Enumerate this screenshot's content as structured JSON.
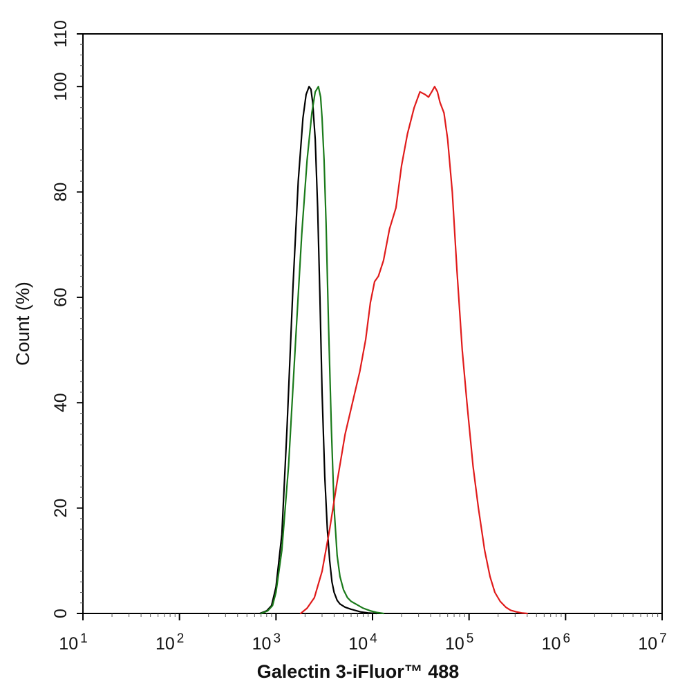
{
  "chart_data": {
    "type": "line",
    "title": "",
    "xlabel": "Galectin 3-iFluor™ 488",
    "ylabel": "Count  (%)",
    "x_scale": "log",
    "xlim": [
      10,
      10000000
    ],
    "ylim": [
      0,
      110
    ],
    "grid": false,
    "legend": "none",
    "x_ticks": [
      {
        "value": 10,
        "base": "10",
        "exp": "1"
      },
      {
        "value": 100,
        "base": "10",
        "exp": "2"
      },
      {
        "value": 1000,
        "base": "10",
        "exp": "3"
      },
      {
        "value": 10000,
        "base": "10",
        "exp": "4"
      },
      {
        "value": 100000,
        "base": "10",
        "exp": "5"
      },
      {
        "value": 1000000,
        "base": "10",
        "exp": "6"
      },
      {
        "value": 10000000,
        "base": "10",
        "exp": "7"
      }
    ],
    "y_ticks": [
      "0",
      "20",
      "40",
      "60",
      "80",
      "100",
      "110"
    ],
    "series": [
      {
        "color": "#000000",
        "x": [
          680,
          800,
          900,
          1000,
          1150,
          1300,
          1500,
          1700,
          1900,
          2050,
          2200,
          2300,
          2400,
          2550,
          2700,
          2850,
          3000,
          3200,
          3400,
          3600,
          3800,
          4000,
          4300,
          4600,
          5200,
          6000,
          7500,
          9000,
          11000
        ],
        "y": [
          0,
          0.5,
          1.5,
          5,
          15,
          35,
          62,
          82,
          94,
          98.5,
          100,
          99.5,
          97,
          90,
          77,
          60,
          42,
          26,
          16,
          10,
          6,
          4,
          2.5,
          1.8,
          1.2,
          0.8,
          0.3,
          0.1,
          0
        ]
      },
      {
        "color": "#1a7a1a",
        "x": [
          700,
          820,
          920,
          1000,
          1150,
          1350,
          1600,
          1850,
          2100,
          2350,
          2550,
          2750,
          2900,
          3000,
          3150,
          3300,
          3500,
          3750,
          4000,
          4300,
          4600,
          5000,
          5500,
          6000,
          7000,
          8000,
          9500,
          11000,
          13000
        ],
        "y": [
          0,
          0.5,
          1.5,
          4,
          12,
          28,
          52,
          72,
          86,
          95,
          99,
          100,
          98,
          94,
          86,
          74,
          55,
          35,
          20,
          11,
          7,
          4.5,
          3,
          2.3,
          1.6,
          1,
          0.5,
          0.2,
          0
        ]
      },
      {
        "color": "#e01b1b",
        "x": [
          1800,
          2100,
          2500,
          3000,
          3600,
          4300,
          5200,
          6200,
          7400,
          8500,
          9500,
          10500,
          11500,
          13000,
          15000,
          17500,
          20000,
          23000,
          27000,
          31000,
          35000,
          38000,
          41000,
          44000,
          47000,
          50000,
          55000,
          60000,
          67000,
          75000,
          85000,
          95000,
          110000,
          125000,
          145000,
          165000,
          185000,
          210000,
          240000,
          270000,
          310000,
          350000,
          400000
        ],
        "y": [
          0,
          1,
          3,
          8,
          16,
          25,
          34,
          40,
          46,
          52,
          59,
          63,
          64,
          67,
          73,
          77,
          85,
          91,
          96,
          99,
          98.5,
          98,
          99,
          100,
          99,
          97,
          95,
          90,
          80,
          65,
          50,
          40,
          28,
          20,
          12,
          7,
          4,
          2.3,
          1.2,
          0.6,
          0.3,
          0.1,
          0
        ]
      }
    ]
  }
}
